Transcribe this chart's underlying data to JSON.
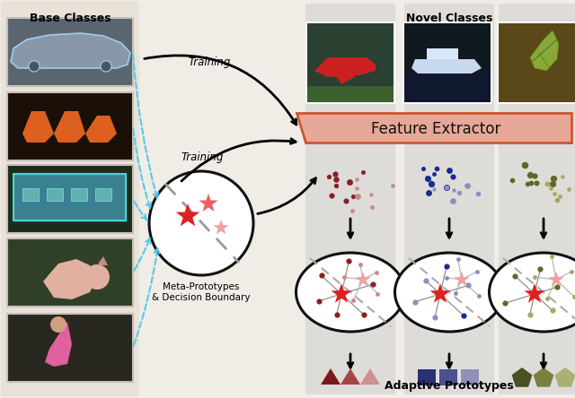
{
  "bg_color": "#f0ece6",
  "base_classes_label": "Base Classes",
  "novel_classes_label": "Novel Classes",
  "feature_extractor_label": "Feature Extractor",
  "meta_proto_label": "Meta-Prototypes\n& Decision Boundary",
  "adaptive_proto_label": "Adaptive Prototypes",
  "training_label": "Training",
  "left_panel_bg": "#e8e2d8",
  "feature_extractor_bg": "#e8a898",
  "feature_extractor_edge": "#cc5533",
  "dashed_arrow_color": "#50c8e8",
  "star_color_dark": "#dd2020",
  "star_color_mid": "#e86060",
  "star_color_light": "#f0a0a0",
  "triangle_dark_1": "#7a1a1a",
  "triangle_mid_1": "#aa4444",
  "triangle_light_1": "#cc9090",
  "square_dark_2": "#2a3070",
  "square_mid_2": "#4a5090",
  "square_light_2": "#9090bb",
  "pentagon_dark_3": "#4a5020",
  "pentagon_mid_3": "#7a8040",
  "pentagon_light_3": "#aab070",
  "col1_dark": "#882222",
  "col1_light": "#cc8888",
  "col2_dark": "#1a2a90",
  "col2_light": "#8890c0",
  "col3_dark": "#606828",
  "col3_light": "#a8a860"
}
